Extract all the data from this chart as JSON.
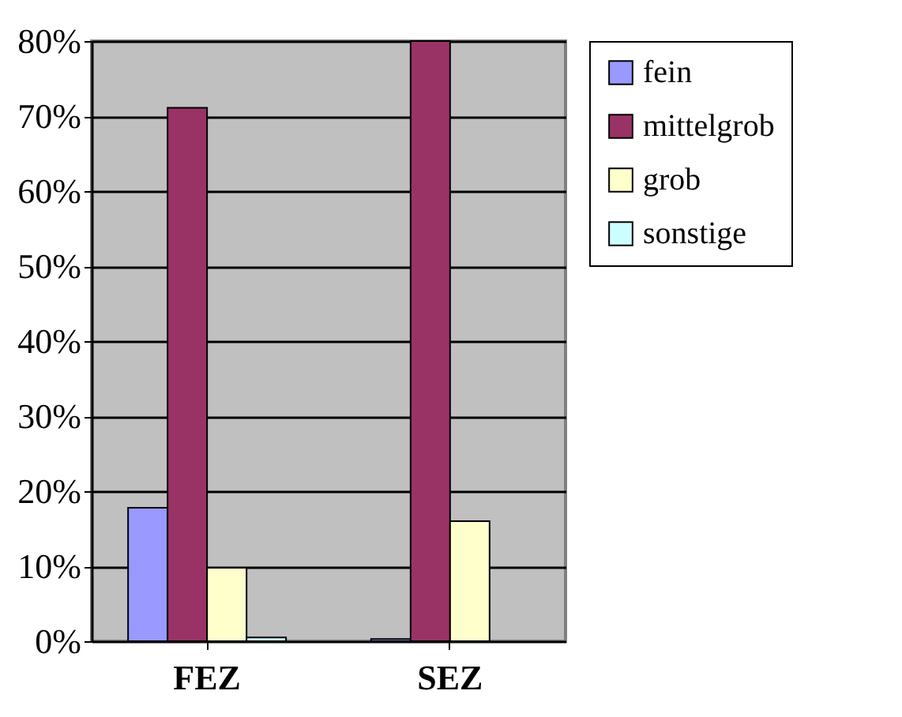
{
  "chart_data": {
    "type": "bar",
    "categories": [
      "FEZ",
      "SEZ"
    ],
    "series": [
      {
        "name": "fein",
        "color": "#9999ff",
        "values": [
          17.8,
          0.3
        ]
      },
      {
        "name": "mittelgrob",
        "color": "#993366",
        "values": [
          71.1,
          80
        ]
      },
      {
        "name": "grob",
        "color": "#ffffcc",
        "values": [
          9.8,
          16
        ]
      },
      {
        "name": "sonstige",
        "color": "#ccffff",
        "values": [
          0.5,
          null
        ]
      }
    ],
    "ylim": [
      0,
      80
    ],
    "yticks": [
      {
        "value": 0,
        "label": "0%"
      },
      {
        "value": 10,
        "label": "10%"
      },
      {
        "value": 20,
        "label": "20%"
      },
      {
        "value": 30,
        "label": "30%"
      },
      {
        "value": 40,
        "label": "40%"
      },
      {
        "value": 50,
        "label": "50%"
      },
      {
        "value": 60,
        "label": "60%"
      },
      {
        "value": 70,
        "label": "70%"
      },
      {
        "value": 80,
        "label": "80%"
      }
    ],
    "grid": "y",
    "legend": "right"
  }
}
